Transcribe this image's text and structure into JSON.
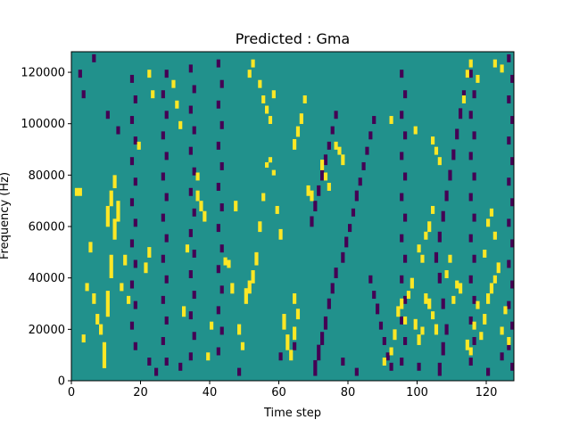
{
  "chart_data": {
    "type": "heatmap",
    "title": "Predicted : Gma",
    "xlabel": "Time step",
    "ylabel": "Frequency (Hz)",
    "xlim": [
      0,
      128
    ],
    "ylim": [
      0,
      128000
    ],
    "x_ticks": [
      "0",
      "20",
      "40",
      "60",
      "80",
      "100",
      "120"
    ],
    "y_ticks": [
      "0",
      "20000",
      "40000",
      "60000",
      "80000",
      "100000",
      "120000"
    ],
    "n_time_steps": 128,
    "n_freq_bins": 128,
    "colormap": "viridis",
    "colors": {
      "background": "#21918c",
      "low": "#440154",
      "high": "#fde725"
    },
    "cells": {
      "high": [
        [
          56,
          2,
          83
        ],
        [
          57,
          2,
          85
        ],
        [
          58,
          2,
          80
        ],
        [
          55,
          3,
          70
        ],
        [
          59,
          3,
          65
        ],
        [
          54,
          4,
          58
        ],
        [
          60,
          4,
          55
        ],
        [
          53,
          5,
          45
        ],
        [
          52,
          5,
          38
        ],
        [
          51,
          5,
          34
        ],
        [
          50,
          6,
          30
        ],
        [
          61,
          6,
          20
        ],
        [
          62,
          6,
          12
        ],
        [
          63,
          4,
          8
        ],
        [
          64,
          5,
          16
        ],
        [
          9,
          10,
          5
        ],
        [
          10,
          10,
          25
        ],
        [
          11,
          9,
          40
        ],
        [
          12,
          8,
          55
        ],
        [
          13,
          8,
          62
        ],
        [
          10,
          8,
          60
        ],
        [
          11,
          6,
          68
        ],
        [
          12,
          5,
          75
        ],
        [
          7,
          4,
          22
        ],
        [
          8,
          4,
          18
        ],
        [
          6,
          4,
          30
        ],
        [
          5,
          4,
          50
        ],
        [
          3,
          3,
          15
        ],
        [
          4,
          3,
          35
        ],
        [
          15,
          4,
          45
        ],
        [
          16,
          3,
          30
        ],
        [
          19,
          3,
          90
        ],
        [
          21,
          4,
          42
        ],
        [
          22,
          4,
          48
        ],
        [
          2,
          3,
          72
        ],
        [
          1,
          3,
          72
        ],
        [
          14,
          3,
          35
        ],
        [
          36,
          4,
          70
        ],
        [
          37,
          4,
          66
        ],
        [
          38,
          4,
          62
        ],
        [
          36,
          3,
          78
        ],
        [
          40,
          3,
          20
        ],
        [
          39,
          3,
          8
        ],
        [
          33,
          3,
          50
        ],
        [
          32,
          4,
          25
        ],
        [
          44,
          3,
          45
        ],
        [
          45,
          3,
          44
        ],
        [
          46,
          4,
          34
        ],
        [
          47,
          4,
          66
        ],
        [
          48,
          4,
          18
        ],
        [
          49,
          3,
          12
        ],
        [
          64,
          4,
          90
        ],
        [
          65,
          4,
          95
        ],
        [
          66,
          4,
          100
        ],
        [
          67,
          3,
          108
        ],
        [
          64,
          4,
          30
        ],
        [
          65,
          4,
          24
        ],
        [
          68,
          4,
          72
        ],
        [
          69,
          4,
          70
        ],
        [
          72,
          4,
          82
        ],
        [
          73,
          3,
          78
        ],
        [
          74,
          3,
          74
        ],
        [
          76,
          3,
          90
        ],
        [
          77,
          3,
          88
        ],
        [
          78,
          4,
          84
        ],
        [
          90,
          3,
          6
        ],
        [
          92,
          3,
          10
        ],
        [
          93,
          4,
          16
        ],
        [
          94,
          4,
          25
        ],
        [
          95,
          4,
          28
        ],
        [
          96,
          3,
          22
        ],
        [
          97,
          3,
          32
        ],
        [
          98,
          4,
          36
        ],
        [
          99,
          4,
          20
        ],
        [
          100,
          4,
          14
        ],
        [
          101,
          3,
          18
        ],
        [
          102,
          4,
          30
        ],
        [
          103,
          4,
          28
        ],
        [
          104,
          3,
          24
        ],
        [
          105,
          4,
          18
        ],
        [
          100,
          3,
          50
        ],
        [
          101,
          3,
          46
        ],
        [
          102,
          3,
          55
        ],
        [
          103,
          4,
          58
        ],
        [
          104,
          3,
          65
        ],
        [
          108,
          3,
          40
        ],
        [
          109,
          3,
          46
        ],
        [
          110,
          3,
          30
        ],
        [
          111,
          3,
          36
        ],
        [
          112,
          4,
          34
        ],
        [
          114,
          4,
          12
        ],
        [
          115,
          3,
          10
        ],
        [
          116,
          3,
          20
        ],
        [
          117,
          3,
          28
        ],
        [
          118,
          3,
          16
        ],
        [
          119,
          4,
          22
        ],
        [
          120,
          4,
          30
        ],
        [
          121,
          4,
          34
        ],
        [
          122,
          3,
          38
        ],
        [
          123,
          4,
          42
        ],
        [
          124,
          3,
          18
        ],
        [
          125,
          3,
          26
        ],
        [
          126,
          3,
          14
        ],
        [
          119,
          3,
          48
        ],
        [
          120,
          3,
          60
        ],
        [
          121,
          3,
          64
        ],
        [
          122,
          3,
          55
        ],
        [
          104,
          3,
          92
        ],
        [
          105,
          3,
          88
        ],
        [
          106,
          3,
          84
        ],
        [
          99,
          3,
          96
        ],
        [
          92,
          3,
          100
        ],
        [
          113,
          3,
          108
        ],
        [
          114,
          3,
          118
        ],
        [
          115,
          3,
          122
        ],
        [
          117,
          3,
          116
        ],
        [
          124,
          3,
          120
        ],
        [
          122,
          3,
          122
        ],
        [
          55,
          3,
          108
        ],
        [
          56,
          3,
          104
        ],
        [
          57,
          3,
          100
        ],
        [
          58,
          3,
          110
        ],
        [
          54,
          3,
          114
        ],
        [
          51,
          3,
          118
        ],
        [
          52,
          3,
          122
        ],
        [
          30,
          3,
          106
        ],
        [
          31,
          3,
          98
        ],
        [
          29,
          3,
          114
        ],
        [
          22,
          3,
          118
        ],
        [
          23,
          3,
          110
        ]
      ],
      "low": [
        [
          70,
          6,
          2
        ],
        [
          71,
          6,
          8
        ],
        [
          72,
          5,
          14
        ],
        [
          73,
          5,
          20
        ],
        [
          74,
          4,
          28
        ],
        [
          75,
          4,
          34
        ],
        [
          76,
          4,
          40
        ],
        [
          69,
          4,
          60
        ],
        [
          70,
          4,
          66
        ],
        [
          71,
          4,
          72
        ],
        [
          72,
          4,
          78
        ],
        [
          73,
          4,
          84
        ],
        [
          74,
          3,
          90
        ],
        [
          75,
          3,
          96
        ],
        [
          76,
          3,
          102
        ],
        [
          78,
          4,
          46
        ],
        [
          79,
          4,
          52
        ],
        [
          80,
          3,
          58
        ],
        [
          81,
          3,
          64
        ],
        [
          82,
          4,
          70
        ],
        [
          83,
          3,
          76
        ],
        [
          84,
          3,
          82
        ],
        [
          85,
          3,
          88
        ],
        [
          86,
          3,
          94
        ],
        [
          87,
          3,
          100
        ],
        [
          86,
          3,
          38
        ],
        [
          87,
          3,
          32
        ],
        [
          88,
          4,
          26
        ],
        [
          89,
          3,
          20
        ],
        [
          90,
          3,
          14
        ],
        [
          91,
          3,
          8
        ],
        [
          92,
          3,
          4
        ],
        [
          106,
          5,
          2
        ],
        [
          107,
          5,
          10
        ],
        [
          108,
          4,
          18
        ],
        [
          107,
          4,
          28
        ],
        [
          106,
          4,
          38
        ],
        [
          105,
          4,
          46
        ],
        [
          106,
          4,
          54
        ],
        [
          107,
          4,
          62
        ],
        [
          108,
          4,
          70
        ],
        [
          109,
          4,
          78
        ],
        [
          110,
          4,
          86
        ],
        [
          111,
          4,
          94
        ],
        [
          112,
          4,
          102
        ],
        [
          113,
          3,
          110
        ],
        [
          114,
          3,
          118
        ],
        [
          127,
          3,
          4
        ],
        [
          126,
          3,
          12
        ],
        [
          127,
          3,
          20
        ],
        [
          126,
          3,
          28
        ],
        [
          127,
          3,
          36
        ],
        [
          126,
          3,
          44
        ],
        [
          127,
          3,
          52
        ],
        [
          126,
          3,
          60
        ],
        [
          127,
          3,
          68
        ],
        [
          126,
          3,
          76
        ],
        [
          127,
          3,
          84
        ],
        [
          126,
          3,
          92
        ],
        [
          127,
          3,
          100
        ],
        [
          126,
          3,
          108
        ],
        [
          127,
          3,
          116
        ],
        [
          126,
          3,
          124
        ],
        [
          18,
          3,
          12
        ],
        [
          17,
          3,
          20
        ],
        [
          18,
          3,
          28
        ],
        [
          17,
          3,
          36
        ],
        [
          18,
          3,
          44
        ],
        [
          17,
          3,
          52
        ],
        [
          18,
          3,
          60
        ],
        [
          17,
          3,
          68
        ],
        [
          18,
          3,
          76
        ],
        [
          17,
          3,
          84
        ],
        [
          18,
          3,
          92
        ],
        [
          17,
          3,
          100
        ],
        [
          18,
          3,
          108
        ],
        [
          17,
          3,
          116
        ],
        [
          27,
          3,
          6
        ],
        [
          26,
          3,
          14
        ],
        [
          27,
          3,
          22
        ],
        [
          26,
          3,
          30
        ],
        [
          27,
          3,
          38
        ],
        [
          26,
          3,
          46
        ],
        [
          27,
          3,
          54
        ],
        [
          26,
          3,
          62
        ],
        [
          27,
          3,
          70
        ],
        [
          26,
          3,
          78
        ],
        [
          27,
          3,
          86
        ],
        [
          26,
          3,
          94
        ],
        [
          27,
          3,
          102
        ],
        [
          26,
          3,
          110
        ],
        [
          27,
          3,
          118
        ],
        [
          34,
          3,
          8
        ],
        [
          35,
          3,
          16
        ],
        [
          34,
          3,
          24
        ],
        [
          35,
          3,
          32
        ],
        [
          34,
          3,
          40
        ],
        [
          35,
          3,
          48
        ],
        [
          34,
          3,
          56
        ],
        [
          35,
          3,
          64
        ],
        [
          34,
          3,
          72
        ],
        [
          35,
          3,
          80
        ],
        [
          34,
          3,
          88
        ],
        [
          35,
          3,
          96
        ],
        [
          34,
          3,
          104
        ],
        [
          35,
          3,
          112
        ],
        [
          34,
          3,
          120
        ],
        [
          42,
          3,
          10
        ],
        [
          43,
          3,
          18
        ],
        [
          42,
          3,
          26
        ],
        [
          43,
          3,
          34
        ],
        [
          42,
          3,
          42
        ],
        [
          43,
          3,
          50
        ],
        [
          42,
          3,
          58
        ],
        [
          43,
          3,
          66
        ],
        [
          42,
          3,
          74
        ],
        [
          43,
          3,
          82
        ],
        [
          42,
          3,
          90
        ],
        [
          43,
          3,
          98
        ],
        [
          42,
          3,
          106
        ],
        [
          43,
          3,
          114
        ],
        [
          42,
          3,
          122
        ],
        [
          95,
          3,
          6
        ],
        [
          96,
          3,
          14
        ],
        [
          95,
          3,
          22
        ],
        [
          96,
          3,
          30
        ],
        [
          95,
          3,
          38
        ],
        [
          96,
          3,
          46
        ],
        [
          95,
          3,
          54
        ],
        [
          96,
          3,
          62
        ],
        [
          95,
          3,
          70
        ],
        [
          96,
          3,
          78
        ],
        [
          95,
          3,
          86
        ],
        [
          96,
          3,
          94
        ],
        [
          95,
          3,
          102
        ],
        [
          96,
          3,
          110
        ],
        [
          95,
          3,
          118
        ],
        [
          115,
          3,
          6
        ],
        [
          116,
          3,
          14
        ],
        [
          115,
          3,
          22
        ],
        [
          116,
          3,
          30
        ],
        [
          115,
          3,
          38
        ],
        [
          116,
          3,
          46
        ],
        [
          115,
          3,
          54
        ],
        [
          116,
          3,
          62
        ],
        [
          115,
          3,
          70
        ],
        [
          116,
          3,
          78
        ],
        [
          115,
          3,
          86
        ],
        [
          116,
          3,
          94
        ],
        [
          115,
          3,
          102
        ],
        [
          116,
          3,
          110
        ],
        [
          115,
          3,
          118
        ],
        [
          3,
          3,
          110
        ],
        [
          2,
          3,
          118
        ],
        [
          6,
          3,
          124
        ],
        [
          10,
          3,
          102
        ],
        [
          13,
          3,
          96
        ],
        [
          22,
          3,
          6
        ],
        [
          24,
          3,
          2
        ],
        [
          31,
          3,
          4
        ],
        [
          48,
          3,
          2
        ],
        [
          60,
          3,
          8
        ],
        [
          64,
          3,
          12
        ],
        [
          78,
          3,
          6
        ],
        [
          82,
          3,
          2
        ],
        [
          100,
          3,
          4
        ],
        [
          120,
          3,
          2
        ],
        [
          124,
          3,
          8
        ]
      ]
    }
  }
}
